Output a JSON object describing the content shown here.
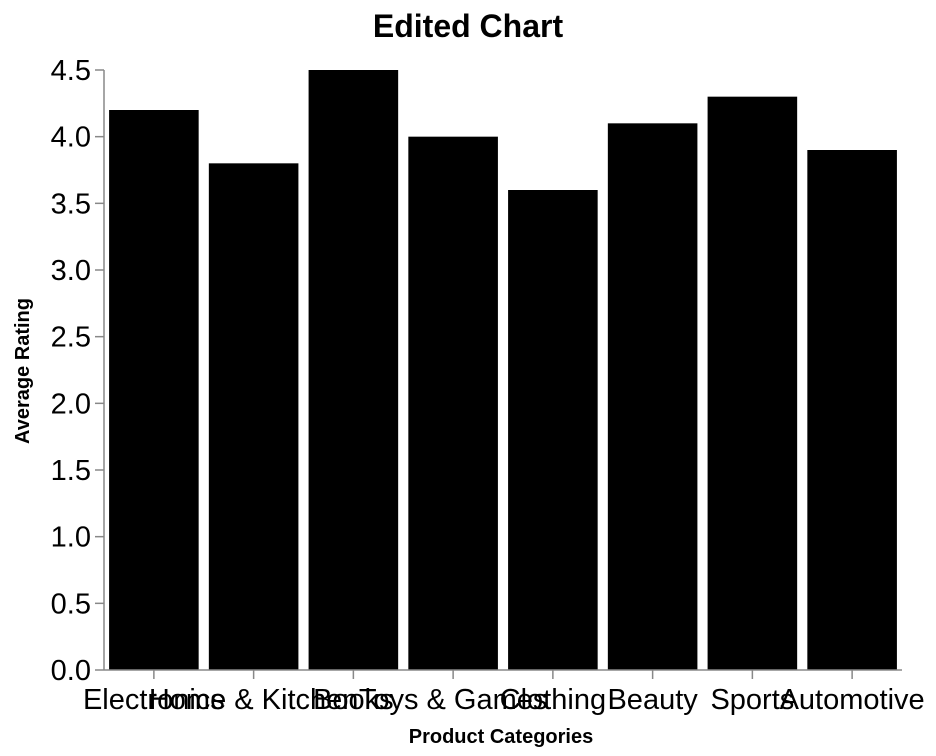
{
  "chart_data": {
    "type": "bar",
    "title": "Edited Chart",
    "xlabel": "Product Categories",
    "ylabel": "Average Rating",
    "categories": [
      "Electronics",
      "Home & Kitchen",
      "Books",
      "Toys & Games",
      "Clothing",
      "Beauty",
      "Sports",
      "Automotive"
    ],
    "values": [
      4.2,
      3.8,
      4.5,
      4.0,
      3.6,
      4.1,
      4.3,
      3.9
    ],
    "ylim": [
      0,
      4.5
    ],
    "yticks": [
      "0.0",
      "0.5",
      "1.0",
      "1.5",
      "2.0",
      "2.5",
      "3.0",
      "3.5",
      "4.0",
      "4.5"
    ],
    "grid": false,
    "bar_color": "#000000",
    "axis_color": "#888888"
  }
}
